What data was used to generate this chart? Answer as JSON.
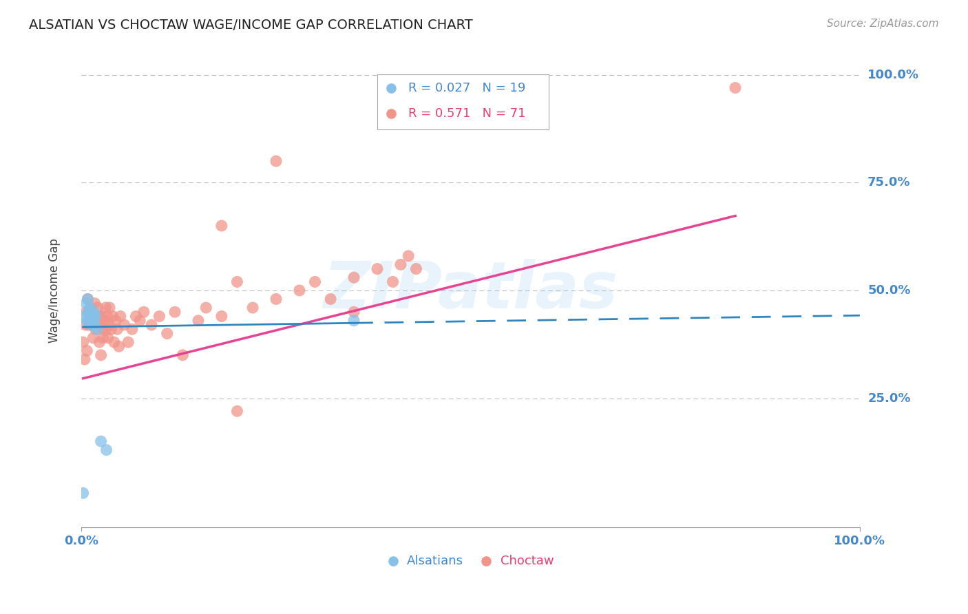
{
  "title": "ALSATIAN VS CHOCTAW WAGE/INCOME GAP CORRELATION CHART",
  "source": "Source: ZipAtlas.com",
  "ylabel": "Wage/Income Gap",
  "watermark": "ZIPatlas",
  "alsatian_color": "#85C1E9",
  "choctaw_color": "#F1948A",
  "alsatian_line_color": "#2E86C1",
  "choctaw_line_color": "#E84393",
  "axis_label_color": "#4488CC",
  "grid_color": "#BBBBBB",
  "bg_color": "#FFFFFF",
  "legend_R_alsatian": "0.027",
  "legend_N_alsatian": "19",
  "legend_R_choctaw": "0.571",
  "legend_N_choctaw": "71",
  "alsatian_x": [
    0.002,
    0.004,
    0.006,
    0.007,
    0.008,
    0.009,
    0.01,
    0.011,
    0.012,
    0.013,
    0.014,
    0.015,
    0.016,
    0.017,
    0.018,
    0.02,
    0.025,
    0.032,
    0.35
  ],
  "alsatian_y": [
    0.03,
    0.44,
    0.47,
    0.43,
    0.48,
    0.45,
    0.43,
    0.46,
    0.44,
    0.42,
    0.44,
    0.43,
    0.45,
    0.42,
    0.44,
    0.41,
    0.15,
    0.13,
    0.43
  ],
  "choctaw_x": [
    0.002,
    0.004,
    0.005,
    0.006,
    0.007,
    0.008,
    0.009,
    0.01,
    0.011,
    0.012,
    0.013,
    0.014,
    0.015,
    0.016,
    0.017,
    0.018,
    0.019,
    0.02,
    0.021,
    0.022,
    0.023,
    0.024,
    0.025,
    0.026,
    0.027,
    0.028,
    0.03,
    0.031,
    0.032,
    0.033,
    0.034,
    0.035,
    0.036,
    0.038,
    0.04,
    0.042,
    0.044,
    0.046,
    0.048,
    0.05,
    0.055,
    0.06,
    0.065,
    0.07,
    0.075,
    0.08,
    0.09,
    0.1,
    0.11,
    0.12,
    0.13,
    0.15,
    0.16,
    0.18,
    0.2,
    0.22,
    0.25,
    0.28,
    0.3,
    0.32,
    0.35,
    0.38,
    0.4,
    0.41,
    0.42,
    0.43,
    0.18,
    0.25,
    0.35,
    0.84,
    0.2
  ],
  "choctaw_y": [
    0.38,
    0.34,
    0.42,
    0.45,
    0.36,
    0.48,
    0.42,
    0.45,
    0.43,
    0.46,
    0.44,
    0.42,
    0.39,
    0.43,
    0.47,
    0.41,
    0.44,
    0.42,
    0.46,
    0.44,
    0.38,
    0.42,
    0.35,
    0.44,
    0.41,
    0.39,
    0.43,
    0.46,
    0.41,
    0.44,
    0.39,
    0.42,
    0.46,
    0.41,
    0.44,
    0.38,
    0.43,
    0.41,
    0.37,
    0.44,
    0.42,
    0.38,
    0.41,
    0.44,
    0.43,
    0.45,
    0.42,
    0.44,
    0.4,
    0.45,
    0.35,
    0.43,
    0.46,
    0.44,
    0.52,
    0.46,
    0.48,
    0.5,
    0.52,
    0.48,
    0.53,
    0.55,
    0.52,
    0.56,
    0.58,
    0.55,
    0.65,
    0.8,
    0.45,
    0.97,
    0.22
  ],
  "xlim": [
    0,
    1.0
  ],
  "ylim": [
    -0.05,
    1.05
  ],
  "yticks": [
    0.0,
    0.25,
    0.5,
    0.75,
    1.0
  ],
  "ytick_labels": [
    "",
    "25.0%",
    "50.0%",
    "75.0%",
    "100.0%"
  ]
}
